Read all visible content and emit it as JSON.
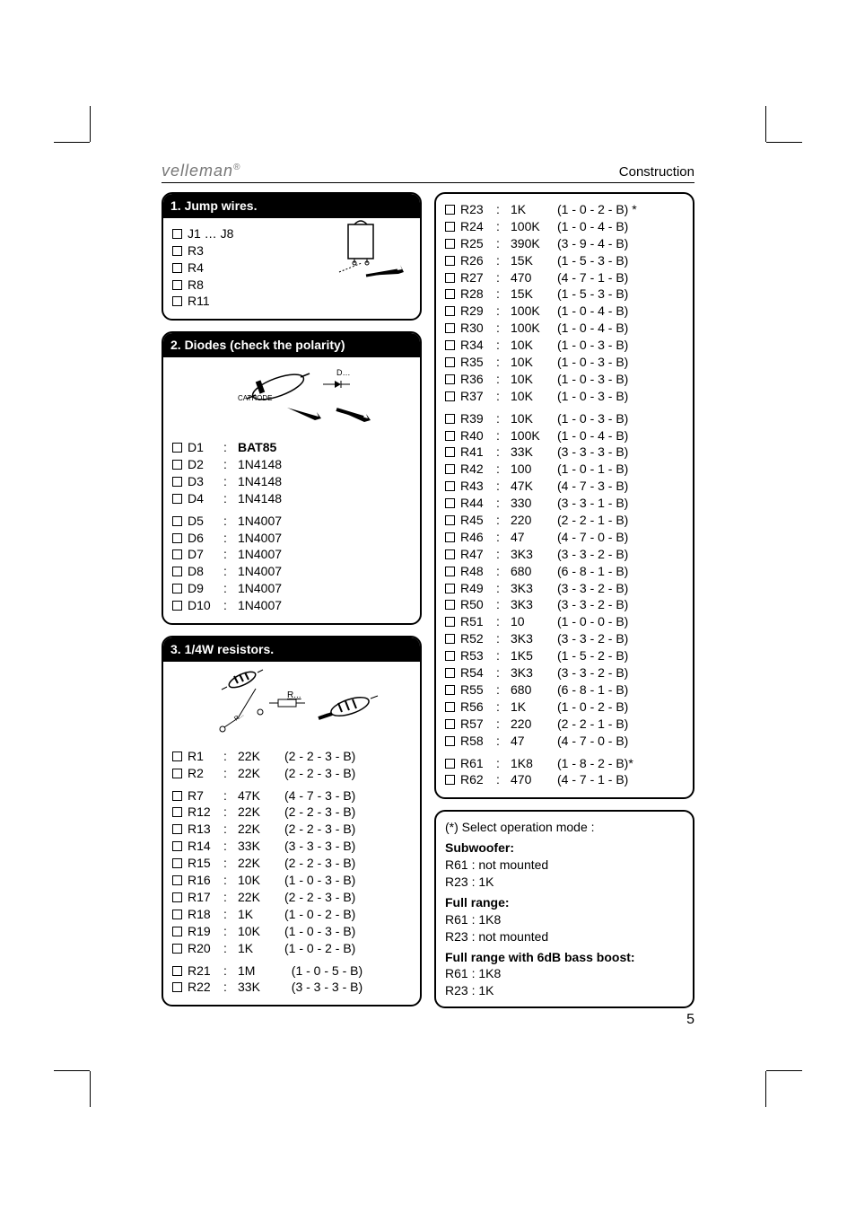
{
  "header": {
    "brand": "velleman",
    "brand_sup": "®",
    "section": "Construction"
  },
  "page_number": "5",
  "box1": {
    "title": "1. Jump wires.",
    "items": [
      "J1 … J8",
      "R3",
      "R4",
      "R8",
      "R11"
    ]
  },
  "box2": {
    "title": "2. Diodes (check the polarity)",
    "label_d": "D…",
    "label_cathode": "CATHODE",
    "items": [
      {
        "ref": "D1",
        "val": "BAT85",
        "bold": true
      },
      {
        "ref": "D2",
        "val": "1N4148"
      },
      {
        "ref": "D3",
        "val": "1N4148"
      },
      {
        "ref": "D4",
        "val": "1N4148"
      },
      {
        "gap": true
      },
      {
        "ref": "D5",
        "val": "1N4007"
      },
      {
        "ref": "D6",
        "val": "1N4007"
      },
      {
        "ref": "D7",
        "val": "1N4007"
      },
      {
        "ref": "D8",
        "val": "1N4007"
      },
      {
        "ref": "D9",
        "val": "1N4007"
      },
      {
        "ref": "D10",
        "val": "1N4007"
      }
    ]
  },
  "box3": {
    "title": "3. 1/4W resistors.",
    "label_r": "R...",
    "items_left": [
      {
        "ref": "R1",
        "val": "22K",
        "code": "(2 - 2 - 3 - B)"
      },
      {
        "ref": "R2",
        "val": "22K",
        "code": "(2 - 2 - 3 - B)"
      },
      {
        "gap": true
      },
      {
        "ref": "R7",
        "val": "47K",
        "code": "(4 - 7 - 3 - B)"
      },
      {
        "ref": "R12",
        "val": "22K",
        "code": "(2 - 2 - 3 - B)"
      },
      {
        "ref": "R13",
        "val": "22K",
        "code": "(2 - 2 - 3 - B)"
      },
      {
        "ref": "R14",
        "val": "33K",
        "code": "(3 - 3 - 3 - B)"
      },
      {
        "ref": "R15",
        "val": "22K",
        "code": "(2 - 2 - 3 - B)"
      },
      {
        "ref": "R16",
        "val": "10K",
        "code": "(1 - 0 - 3 - B)"
      },
      {
        "ref": "R17",
        "val": "22K",
        "code": "(2 - 2 - 3 - B)"
      },
      {
        "ref": "R18",
        "val": "1K",
        "code": "(1 - 0 - 2 - B)"
      },
      {
        "ref": "R19",
        "val": "10K",
        "code": "(1 - 0 - 3 - B)"
      },
      {
        "ref": "R20",
        "val": "1K",
        "code": "(1 - 0 - 2 - B)"
      },
      {
        "gap": true
      },
      {
        "ref": "R21",
        "val": "1M",
        "code": "  (1 - 0 - 5 - B)"
      },
      {
        "ref": "R22",
        "val": "33K",
        "code": "  (3 - 3 - 3 - B)"
      }
    ],
    "items_right": [
      {
        "ref": "R23",
        "val": "1K",
        "code": "(1 - 0 - 2 - B) *"
      },
      {
        "ref": "R24",
        "val": "100K",
        "code": "(1 - 0 - 4 - B)"
      },
      {
        "ref": "R25",
        "val": "390K",
        "code": "(3 - 9 - 4 - B)"
      },
      {
        "ref": "R26",
        "val": "15K",
        "code": "(1 - 5 - 3 - B)"
      },
      {
        "ref": "R27",
        "val": "470",
        "code": "(4 - 7 - 1 - B)"
      },
      {
        "ref": "R28",
        "val": "15K",
        "code": "(1 - 5 - 3 - B)"
      },
      {
        "ref": "R29",
        "val": "100K",
        "code": "(1 - 0 - 4 - B)"
      },
      {
        "ref": "R30",
        "val": "100K",
        "code": "(1 - 0 - 4 - B)"
      },
      {
        "ref": "R34",
        "val": "10K",
        "code": "(1 - 0 - 3 - B)"
      },
      {
        "ref": "R35",
        "val": "10K",
        "code": "(1 - 0 - 3 - B)"
      },
      {
        "ref": "R36",
        "val": "10K",
        "code": "(1 - 0 - 3 - B)"
      },
      {
        "ref": "R37",
        "val": "10K",
        "code": "(1 - 0 - 3 - B)"
      },
      {
        "gap": true
      },
      {
        "ref": "R39",
        "val": "10K",
        "code": "(1 - 0 - 3 - B)"
      },
      {
        "ref": "R40",
        "val": "100K",
        "code": "(1 - 0 - 4 - B)"
      },
      {
        "ref": "R41",
        "val": "33K",
        "code": "(3 - 3 - 3 - B)"
      },
      {
        "ref": "R42",
        "val": "100",
        "code": "(1 - 0 - 1 - B)"
      },
      {
        "ref": "R43",
        "val": "47K",
        "code": "(4 - 7 - 3 - B)"
      },
      {
        "ref": "R44",
        "val": "330",
        "code": "(3 - 3 - 1 - B)"
      },
      {
        "ref": "R45",
        "val": "220",
        "code": "(2 - 2 - 1 - B)"
      },
      {
        "ref": "R46",
        "val": "47",
        "code": "(4 - 7 - 0 - B)"
      },
      {
        "ref": "R47",
        "val": "3K3",
        "code": "(3 - 3 - 2 - B)"
      },
      {
        "ref": "R48",
        "val": "680",
        "code": "(6 - 8 - 1 - B)"
      },
      {
        "ref": "R49",
        "val": "3K3",
        "code": "(3 - 3 - 2 - B)"
      },
      {
        "ref": "R50",
        "val": "3K3",
        "code": "(3 - 3 - 2 - B)"
      },
      {
        "ref": "R51",
        "val": "10",
        "code": "(1 - 0 - 0 - B)"
      },
      {
        "ref": "R52",
        "val": "3K3",
        "code": "(3 - 3 - 2 - B)"
      },
      {
        "ref": "R53",
        "val": "1K5",
        "code": "(1 - 5 - 2 - B)"
      },
      {
        "ref": "R54",
        "val": "3K3",
        "code": "(3 - 3 - 2 - B)"
      },
      {
        "ref": "R55",
        "val": "680",
        "code": "(6 - 8 - 1 - B)"
      },
      {
        "ref": "R56",
        "val": "1K",
        "code": "(1 - 0 - 2 - B)"
      },
      {
        "ref": "R57",
        "val": "220",
        "code": "(2 - 2 - 1 - B)"
      },
      {
        "ref": "R58",
        "val": "47",
        "code": "(4 - 7 - 0 - B)"
      },
      {
        "gap": true
      },
      {
        "ref": "R61",
        "val": "1K8",
        "code": "(1 - 8 - 2 - B)*"
      },
      {
        "ref": "R62",
        "val": "470",
        "code": "(4 - 7 - 1 - B)"
      }
    ]
  },
  "note": {
    "star": "(*) Select operation mode :",
    "sub_title": "Subwoofer:",
    "sub_l1": "R61 : not mounted",
    "sub_l2": "R23 : 1K",
    "full_title": "Full range:",
    "full_l1": "R61 : 1K8",
    "full_l2": "R23 : not mounted",
    "boost_title": "Full range with 6dB bass boost:",
    "boost_l1": "R61 : 1K8",
    "boost_l2": "R23 : 1K"
  }
}
